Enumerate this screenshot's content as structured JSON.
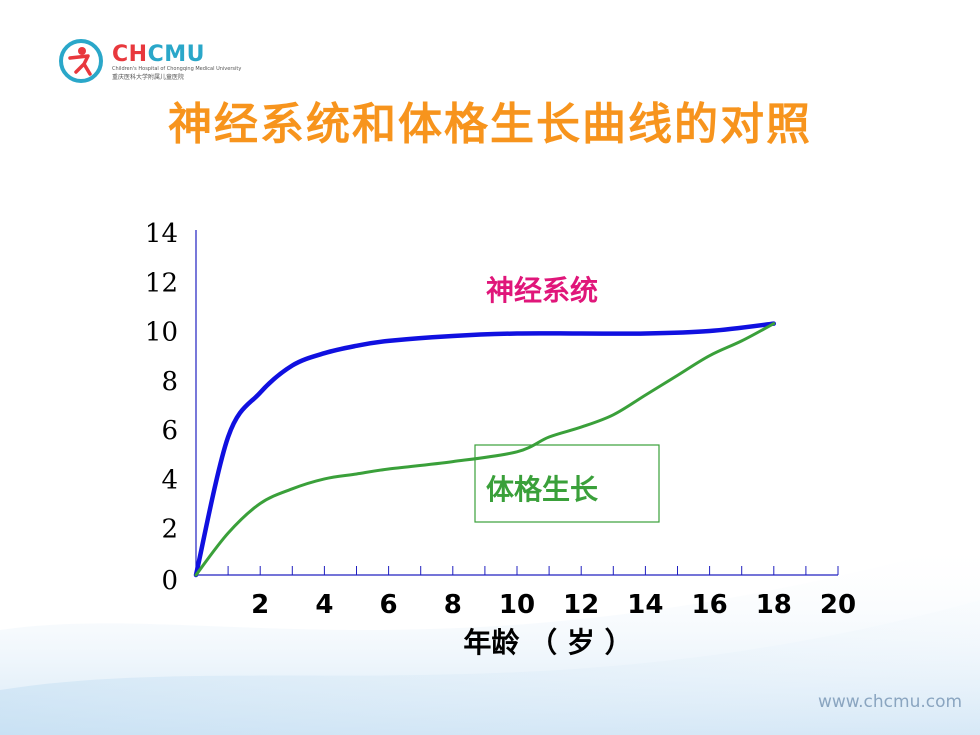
{
  "slide": {
    "title": "神经系统和体格生长曲线的对照",
    "footer_url": "www.chcmu.com"
  },
  "logo": {
    "name": "CHCMU",
    "subline_en": "Children's Hospital of Chongqing Medical University",
    "subline_cn": "重庆医科大学附属儿童医院"
  },
  "colors": {
    "title": "#f7941d",
    "nervous_system": "#1010e0",
    "physical_growth": "#3aa03a",
    "nervous_label": "#e0167a",
    "physical_label": "#3aa03a",
    "axis": "#2020c0"
  },
  "chart_data": {
    "type": "line",
    "title": "",
    "xlabel": "年龄 （ 岁 ）",
    "ylabel": "",
    "xlim": [
      0,
      20
    ],
    "ylim": [
      0,
      14
    ],
    "x_ticks": [
      2,
      4,
      6,
      8,
      10,
      12,
      14,
      16,
      18,
      20
    ],
    "y_ticks": [
      0,
      2,
      4,
      6,
      8,
      10,
      12,
      14
    ],
    "grid": false,
    "series": [
      {
        "name": "神经系统",
        "x": [
          0,
          1,
          2,
          3,
          4,
          5,
          6,
          8,
          10,
          12,
          14,
          16,
          18
        ],
        "y": [
          0,
          5.6,
          7.4,
          8.5,
          9.0,
          9.3,
          9.5,
          9.7,
          9.8,
          9.8,
          9.8,
          9.9,
          10.2
        ]
      },
      {
        "name": "体格生长",
        "x": [
          0,
          1,
          2,
          3,
          4,
          5,
          6,
          8,
          10,
          11,
          12,
          13,
          14,
          15,
          16,
          17,
          18
        ],
        "y": [
          0,
          1.7,
          2.9,
          3.5,
          3.9,
          4.1,
          4.3,
          4.6,
          5.0,
          5.6,
          6.0,
          6.5,
          7.3,
          8.1,
          8.9,
          9.5,
          10.2
        ]
      }
    ]
  }
}
